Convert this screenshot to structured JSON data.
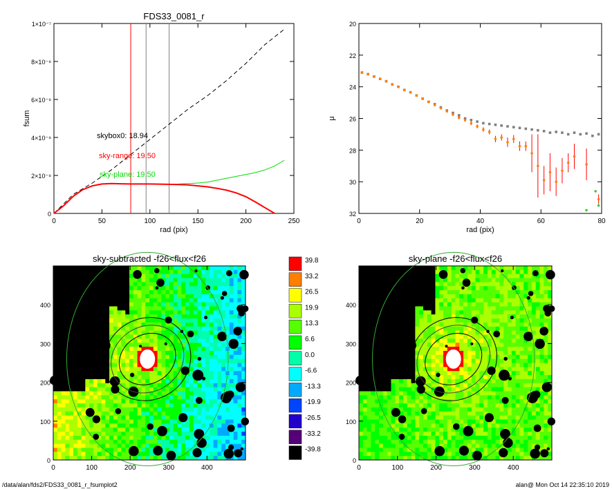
{
  "footer": {
    "path": "/data/alan/fds2/FDS33_0081_r_fsumplot2",
    "stamp": "alan@  Mon Oct 14 22:35:10 2019"
  },
  "chart_data": [
    {
      "id": "fsum",
      "type": "line",
      "title": "FDS33_0081_r",
      "xlabel": "rad (pix)",
      "ylabel": "fsum",
      "xlim": [
        0,
        250
      ],
      "ylim": [
        0,
        1e-07
      ],
      "xticks": [
        "0",
        "50",
        "100",
        "150",
        "200",
        "250"
      ],
      "yticks": [
        "0",
        "2×10⁻⁸",
        "4×10⁻⁸",
        "6×10⁻⁸",
        "8×10⁻⁸",
        "1×10⁻⁷"
      ],
      "vlines": [
        {
          "x": 80,
          "color": "#ff0000"
        },
        {
          "x": 96,
          "color": "#808080"
        },
        {
          "x": 120,
          "color": "#808080"
        }
      ],
      "annotations": [
        {
          "text": "skybox0: 18.94",
          "color": "#000000"
        },
        {
          "text": "sky-range: 19.50",
          "color": "#ff0000"
        },
        {
          "text": "sky-plane: 19.50",
          "color": "#00dd00"
        }
      ],
      "series": [
        {
          "style": "dashed",
          "color": "#000000",
          "x": [
            0,
            20,
            40,
            60,
            80,
            100,
            120,
            140,
            160,
            180,
            200,
            220,
            240
          ],
          "y": [
            0,
            1e-08,
            1.6e-08,
            2.3e-08,
            3.1e-08,
            3.9e-08,
            4.7e-08,
            5.5e-08,
            6.2e-08,
            7e-08,
            7.9e-08,
            8.9e-08,
            9.7e-08
          ]
        },
        {
          "style": "solid",
          "color": "#00dd00",
          "x": [
            0,
            5,
            10,
            20,
            30,
            40,
            50,
            60,
            70,
            80,
            90,
            100,
            110,
            120,
            130,
            140,
            150,
            160,
            170,
            180,
            190,
            200,
            210,
            220,
            230,
            240
          ],
          "y": [
            0,
            2e-09,
            4e-09,
            9e-09,
            1.25e-08,
            1.45e-08,
            1.55e-08,
            1.57e-08,
            1.56e-08,
            1.55e-08,
            1.55e-08,
            1.55e-08,
            1.54e-08,
            1.54e-08,
            1.55e-08,
            1.57e-08,
            1.6e-08,
            1.65e-08,
            1.75e-08,
            1.85e-08,
            1.95e-08,
            2.05e-08,
            2.15e-08,
            2.3e-08,
            2.5e-08,
            2.8e-08
          ]
        },
        {
          "style": "solid",
          "color": "#ff0000",
          "x": [
            0,
            5,
            10,
            20,
            30,
            40,
            50,
            60,
            70,
            80,
            90,
            100,
            110,
            120,
            130,
            140,
            150,
            160,
            170,
            180,
            190,
            200,
            210,
            220,
            230
          ],
          "y": [
            0,
            2e-09,
            4e-09,
            9e-09,
            1.25e-08,
            1.45e-08,
            1.55e-08,
            1.57e-08,
            1.56e-08,
            1.55e-08,
            1.55e-08,
            1.55e-08,
            1.54e-08,
            1.53e-08,
            1.52e-08,
            1.5e-08,
            1.45e-08,
            1.4e-08,
            1.32e-08,
            1.22e-08,
            1.08e-08,
            8.8e-09,
            6e-09,
            3e-09,
            0
          ]
        }
      ]
    },
    {
      "id": "mu",
      "type": "scatter",
      "title": "",
      "xlabel": "rad (pix)",
      "ylabel": "μ",
      "xlim": [
        0,
        80
      ],
      "ylim": [
        32,
        20
      ],
      "xticks": [
        "0",
        "20",
        "40",
        "60",
        "80"
      ],
      "yticks": [
        "20",
        "22",
        "24",
        "26",
        "28",
        "30",
        "32"
      ],
      "series": [
        {
          "marker": "square",
          "color": "#808080",
          "x": [
            1,
            3,
            5,
            7,
            9,
            11,
            13,
            15,
            17,
            19,
            21,
            23,
            25,
            27,
            29,
            31,
            33,
            35,
            37,
            39,
            41,
            43,
            45,
            47,
            49,
            51,
            53,
            55,
            57,
            59,
            61,
            63,
            65,
            67,
            69,
            71,
            73,
            75,
            77,
            79
          ],
          "y": [
            23.1,
            23.2,
            23.35,
            23.5,
            23.65,
            23.85,
            24.0,
            24.2,
            24.35,
            24.55,
            24.75,
            24.95,
            25.1,
            25.3,
            25.5,
            25.65,
            25.8,
            26.0,
            26.1,
            26.2,
            26.3,
            26.35,
            26.4,
            26.45,
            26.5,
            26.55,
            26.6,
            26.65,
            26.7,
            26.75,
            26.8,
            26.9,
            26.85,
            26.9,
            27.0,
            26.9,
            27.0,
            26.95,
            27.1,
            27.0
          ]
        },
        {
          "marker": "dot",
          "color": "#ff7f00",
          "x": [
            1,
            3,
            5,
            7,
            9,
            11,
            13,
            15,
            17,
            19,
            21,
            23,
            25,
            27,
            29,
            31,
            33,
            35,
            37,
            39,
            41,
            43,
            45,
            47,
            49,
            51,
            53,
            55,
            57,
            59,
            61,
            63,
            65,
            67,
            69,
            71,
            75,
            79
          ],
          "y": [
            23.1,
            23.2,
            23.35,
            23.5,
            23.65,
            23.85,
            24.0,
            24.2,
            24.35,
            24.55,
            24.75,
            24.95,
            25.15,
            25.35,
            25.55,
            25.75,
            25.95,
            26.1,
            26.3,
            26.5,
            26.7,
            26.85,
            27.3,
            27.2,
            27.5,
            27.3,
            27.75,
            27.75,
            28.2,
            29.0,
            29.9,
            29.4,
            30.0,
            29.3,
            28.8,
            28.4,
            28.9,
            31.1
          ],
          "err": [
            0.03,
            0.03,
            0.03,
            0.03,
            0.04,
            0.04,
            0.04,
            0.05,
            0.05,
            0.05,
            0.06,
            0.06,
            0.07,
            0.08,
            0.08,
            0.09,
            0.1,
            0.1,
            0.12,
            0.12,
            0.14,
            0.15,
            0.2,
            0.2,
            0.3,
            0.25,
            0.3,
            0.3,
            1.2,
            2.0,
            0.9,
            1.2,
            0.9,
            0.8,
            0.6,
            0.8,
            1.0,
            0.3
          ]
        },
        {
          "marker": "dot",
          "color": "#33cc33",
          "x": [
            75,
            78,
            79
          ],
          "y": [
            31.8,
            30.6,
            31.5
          ]
        }
      ]
    },
    {
      "id": "sky-subtracted",
      "type": "heatmap",
      "title": "sky-subtracted -f26<flux<f26",
      "xlim": [
        0,
        500
      ],
      "ylim": [
        0,
        500
      ],
      "xticks": [
        "0",
        "100",
        "200",
        "300",
        "400"
      ],
      "yticks": [
        "0",
        "100",
        "200",
        "300",
        "400"
      ]
    },
    {
      "id": "colorbar",
      "type": "colorbar",
      "levels": [
        "39.8",
        "33.2",
        "26.5",
        "19.9",
        "13.3",
        "6.6",
        "0.0",
        "-6.6",
        "-13.3",
        "-19.9",
        "-26.5",
        "-33.2",
        "-39.8"
      ],
      "colors": [
        "#ff0000",
        "#ff7f00",
        "#ffff00",
        "#aaff00",
        "#55ff00",
        "#00ff00",
        "#00ffaa",
        "#00ffff",
        "#00aaff",
        "#0044ff",
        "#2200cc",
        "#550077",
        "#000000"
      ]
    },
    {
      "id": "sky-plane",
      "type": "heatmap",
      "title": "sky-plane -f26<flux<f26",
      "xlim": [
        0,
        500
      ],
      "ylim": [
        0,
        500
      ],
      "xticks": [
        "0",
        "100",
        "200",
        "300",
        "400"
      ],
      "yticks": [
        "0",
        "100",
        "200",
        "300",
        "400"
      ]
    }
  ]
}
